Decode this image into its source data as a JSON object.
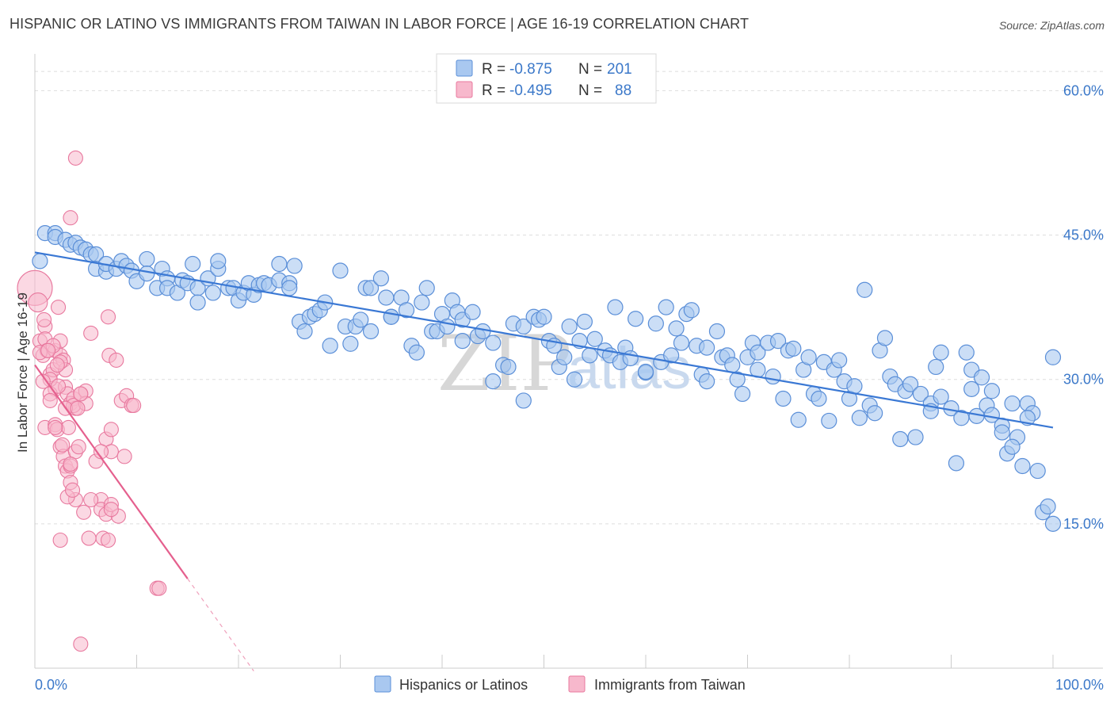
{
  "title": "HISPANIC OR LATINO VS IMMIGRANTS FROM TAIWAN IN LABOR FORCE | AGE 16-19 CORRELATION CHART",
  "source": "Source: ZipAtlas.com",
  "watermark": {
    "zip": "ZIP",
    "atlas": "atlas"
  },
  "legend": {
    "rows": [
      {
        "r_label": "R =",
        "r_value": "-0.875",
        "n_label": "N =",
        "n_value": "201"
      },
      {
        "r_label": "R =",
        "r_value": "-0.495",
        "n_label": "N =",
        "n_value": "88"
      }
    ]
  },
  "bottom_legend": [
    "Hispanics or Latinos",
    "Immigrants from Taiwan"
  ],
  "colors": {
    "blue_fill": "#a9c8f0",
    "blue_stroke": "#5b8fd8",
    "blue_line": "#3a78d4",
    "pink_fill": "#f7b8cc",
    "pink_stroke": "#e8789e",
    "pink_line": "#e5608e",
    "tick_text": "#3b78c9",
    "grid": "#dddddd"
  },
  "chart_data": {
    "type": "scatter",
    "title": "HISPANIC OR LATINO VS IMMIGRANTS FROM TAIWAN IN LABOR FORCE | AGE 16-19 CORRELATION CHART",
    "xlabel": "",
    "ylabel": "In Labor Force | Age 16-19",
    "xlim": [
      0,
      100
    ],
    "ylim": [
      0,
      63
    ],
    "x_tick_labels": [
      "0.0%",
      "100.0%"
    ],
    "y_ticks": [
      15,
      30,
      45,
      60
    ],
    "y_tick_labels": [
      "15.0%",
      "30.0%",
      "45.0%",
      "60.0%"
    ],
    "grid": true,
    "legend_position": "top-center",
    "series": [
      {
        "name": "Hispanics or Latinos",
        "r": -0.875,
        "n": 201,
        "trend": {
          "x": [
            0,
            100
          ],
          "y": [
            43.2,
            25.0
          ]
        },
        "points": [
          [
            0.5,
            42.3
          ],
          [
            1,
            45.2
          ],
          [
            2,
            45.2
          ],
          [
            2,
            44.8
          ],
          [
            3,
            44.5
          ],
          [
            3.5,
            44
          ],
          [
            4,
            44.2
          ],
          [
            4.5,
            43.7
          ],
          [
            5,
            43.5
          ],
          [
            5.5,
            43
          ],
          [
            6,
            43
          ],
          [
            6,
            41.5
          ],
          [
            7,
            41.2
          ],
          [
            7,
            42
          ],
          [
            8,
            41.5
          ],
          [
            8.5,
            42.3
          ],
          [
            9,
            41.8
          ],
          [
            9.5,
            41.3
          ],
          [
            10,
            40.2
          ],
          [
            11,
            42.5
          ],
          [
            11,
            41
          ],
          [
            12,
            39.5
          ],
          [
            12.5,
            41.5
          ],
          [
            13,
            40.5
          ],
          [
            13,
            39.5
          ],
          [
            14,
            39
          ],
          [
            14.5,
            40.3
          ],
          [
            15,
            40
          ],
          [
            15.5,
            42
          ],
          [
            16,
            39.5
          ],
          [
            16,
            38
          ],
          [
            17,
            40.5
          ],
          [
            17.5,
            39
          ],
          [
            18,
            41.5
          ],
          [
            18,
            42.3
          ],
          [
            19,
            39.5
          ],
          [
            19.5,
            39.5
          ],
          [
            20,
            38.2
          ],
          [
            20.5,
            39
          ],
          [
            21,
            40
          ],
          [
            21.5,
            38.8
          ],
          [
            22,
            39.8
          ],
          [
            22.5,
            40
          ],
          [
            23,
            39.8
          ],
          [
            24,
            42
          ],
          [
            24,
            40.3
          ],
          [
            25,
            40
          ],
          [
            25,
            39.5
          ],
          [
            25.5,
            41.8
          ],
          [
            26,
            36
          ],
          [
            26.5,
            35
          ],
          [
            27,
            36.5
          ],
          [
            27.5,
            36.8
          ],
          [
            28,
            37.2
          ],
          [
            28.5,
            38
          ],
          [
            29,
            33.5
          ],
          [
            30,
            41.3
          ],
          [
            30.5,
            35.5
          ],
          [
            31,
            33.7
          ],
          [
            31.5,
            35.5
          ],
          [
            32,
            36.2
          ],
          [
            32.5,
            39.5
          ],
          [
            33,
            39.5
          ],
          [
            33,
            35
          ],
          [
            34,
            40.5
          ],
          [
            34.5,
            38.5
          ],
          [
            35,
            36.5
          ],
          [
            35,
            36.5
          ],
          [
            36,
            38.5
          ],
          [
            36.5,
            37.2
          ],
          [
            37,
            33.5
          ],
          [
            37.5,
            32.8
          ],
          [
            38,
            38
          ],
          [
            38.5,
            39.5
          ],
          [
            39,
            35
          ],
          [
            39.5,
            35
          ],
          [
            40,
            36.8
          ],
          [
            40.5,
            35.5
          ],
          [
            41,
            38.2
          ],
          [
            41.5,
            37
          ],
          [
            42,
            36.2
          ],
          [
            42,
            34
          ],
          [
            43,
            37
          ],
          [
            43.5,
            34.5
          ],
          [
            44,
            35
          ],
          [
            45,
            33.8
          ],
          [
            45,
            29.8
          ],
          [
            46,
            31.5
          ],
          [
            46.5,
            31.3
          ],
          [
            47,
            35.8
          ],
          [
            48,
            35.5
          ],
          [
            48,
            27.8
          ],
          [
            49,
            36.5
          ],
          [
            49.5,
            36.2
          ],
          [
            50,
            36.5
          ],
          [
            50.5,
            34
          ],
          [
            51,
            33.5
          ],
          [
            51.5,
            31.3
          ],
          [
            52,
            32.3
          ],
          [
            52.5,
            35.5
          ],
          [
            53,
            30
          ],
          [
            53.5,
            34
          ],
          [
            54,
            36
          ],
          [
            54.5,
            32.5
          ],
          [
            55,
            34.2
          ],
          [
            56,
            33
          ],
          [
            56.5,
            32.5
          ],
          [
            57,
            37.5
          ],
          [
            57.5,
            31.8
          ],
          [
            58,
            33.3
          ],
          [
            58.5,
            32.2
          ],
          [
            59,
            36.3
          ],
          [
            60,
            30.7
          ],
          [
            60,
            30.8
          ],
          [
            61,
            35.8
          ],
          [
            61.5,
            31.8
          ],
          [
            62,
            37.5
          ],
          [
            62.5,
            32.5
          ],
          [
            63,
            35.3
          ],
          [
            63.5,
            33.8
          ],
          [
            64,
            36.8
          ],
          [
            64.5,
            37.2
          ],
          [
            65,
            33.5
          ],
          [
            65.5,
            30.5
          ],
          [
            66,
            29.8
          ],
          [
            66,
            33.3
          ],
          [
            67,
            35
          ],
          [
            67.5,
            32.3
          ],
          [
            68,
            32.5
          ],
          [
            68.5,
            31.5
          ],
          [
            69,
            30
          ],
          [
            69.5,
            28.5
          ],
          [
            70,
            32.3
          ],
          [
            70.5,
            33.8
          ],
          [
            71,
            31
          ],
          [
            71,
            32.8
          ],
          [
            72,
            33.8
          ],
          [
            72.5,
            30.3
          ],
          [
            73,
            34
          ],
          [
            73.5,
            28
          ],
          [
            74,
            33
          ],
          [
            74.5,
            33.2
          ],
          [
            75,
            25.8
          ],
          [
            75.5,
            31
          ],
          [
            76,
            32.3
          ],
          [
            76.5,
            28.5
          ],
          [
            77,
            28
          ],
          [
            77.5,
            31.8
          ],
          [
            78,
            25.7
          ],
          [
            78.5,
            31
          ],
          [
            79,
            32
          ],
          [
            79.5,
            29.8
          ],
          [
            80,
            28
          ],
          [
            80.5,
            29.3
          ],
          [
            81,
            26
          ],
          [
            81.5,
            39.3
          ],
          [
            82,
            27.3
          ],
          [
            82.5,
            26.5
          ],
          [
            83,
            33
          ],
          [
            83.5,
            34.3
          ],
          [
            84,
            30.3
          ],
          [
            84.5,
            29.5
          ],
          [
            85,
            23.8
          ],
          [
            85.5,
            28.8
          ],
          [
            86,
            29.5
          ],
          [
            86.5,
            24
          ],
          [
            87,
            28.5
          ],
          [
            88,
            27.5
          ],
          [
            88.5,
            31.3
          ],
          [
            89,
            32.8
          ],
          [
            89,
            28.2
          ],
          [
            90,
            27
          ],
          [
            90.5,
            21.3
          ],
          [
            91,
            26
          ],
          [
            91.5,
            32.8
          ],
          [
            92,
            31
          ],
          [
            92.5,
            26.2
          ],
          [
            93,
            30.2
          ],
          [
            93.5,
            27.3
          ],
          [
            94,
            28.8
          ],
          [
            94,
            26.3
          ],
          [
            95,
            25.2
          ],
          [
            95.5,
            22.3
          ],
          [
            96,
            27.5
          ],
          [
            96.5,
            24
          ],
          [
            97,
            21
          ],
          [
            97.5,
            27.5
          ],
          [
            98,
            26.5
          ],
          [
            98.5,
            20.5
          ],
          [
            99,
            16.2
          ],
          [
            99.5,
            16.8
          ],
          [
            100,
            15
          ],
          [
            100,
            32.3
          ],
          [
            96,
            23
          ],
          [
            92,
            29
          ],
          [
            88,
            26.7
          ],
          [
            95,
            24.5
          ],
          [
            97.5,
            26
          ]
        ]
      },
      {
        "name": "Immigrants from Taiwan",
        "r": -0.495,
        "n": 88,
        "trend": {
          "x": [
            0,
            15
          ],
          "y": [
            31.5,
            9.3
          ]
        },
        "trend_dashed": {
          "x": [
            15,
            21.5
          ],
          "y": [
            9.3,
            -0.3
          ]
        },
        "points": [
          [
            0,
            39.5
          ],
          [
            0.3,
            38
          ],
          [
            0.5,
            34
          ],
          [
            0.8,
            32.5
          ],
          [
            1,
            35.5
          ],
          [
            1,
            34.2
          ],
          [
            1.2,
            33
          ],
          [
            1.5,
            30.5
          ],
          [
            1.8,
            31
          ],
          [
            2,
            29
          ],
          [
            2,
            33
          ],
          [
            2.3,
            37.5
          ],
          [
            2.5,
            34
          ],
          [
            2.5,
            32.5
          ],
          [
            2.8,
            32
          ],
          [
            3,
            29.2
          ],
          [
            3.2,
            28.5
          ],
          [
            3.5,
            27.5
          ],
          [
            3.8,
            28
          ],
          [
            4,
            27
          ],
          [
            1,
            25
          ],
          [
            1.5,
            28.5
          ],
          [
            2,
            25.3
          ],
          [
            2.2,
            24.8
          ],
          [
            2.5,
            23
          ],
          [
            2.8,
            22
          ],
          [
            3,
            21
          ],
          [
            3.2,
            20.5
          ],
          [
            3.5,
            19.3
          ],
          [
            2.7,
            23.2
          ],
          [
            3.5,
            21
          ],
          [
            4,
            22.5
          ],
          [
            4.3,
            23
          ],
          [
            3.8,
            27.3
          ],
          [
            4.5,
            28.5
          ],
          [
            5,
            28.8
          ],
          [
            5,
            27.5
          ],
          [
            5.5,
            34.8
          ],
          [
            6,
            21.5
          ],
          [
            6.5,
            17.5
          ],
          [
            6.5,
            16.5
          ],
          [
            7,
            16
          ],
          [
            7.5,
            17
          ],
          [
            7,
            23.8
          ],
          [
            7.5,
            24.8
          ],
          [
            7.5,
            22.5
          ],
          [
            6.5,
            22.5
          ],
          [
            7.3,
            32.5
          ],
          [
            7.2,
            36.5
          ],
          [
            8,
            32
          ],
          [
            8.2,
            15.8
          ],
          [
            8.5,
            27.8
          ],
          [
            8.8,
            22
          ],
          [
            9,
            28.3
          ],
          [
            9.5,
            27.3
          ],
          [
            9.7,
            27.3
          ],
          [
            4,
            53
          ],
          [
            3.5,
            46.8
          ],
          [
            3,
            31
          ],
          [
            3.3,
            25
          ],
          [
            4.8,
            16.2
          ],
          [
            5.3,
            13.5
          ],
          [
            6.7,
            13.5
          ],
          [
            7.2,
            13.3
          ],
          [
            2.5,
            13.3
          ],
          [
            4,
            17.5
          ],
          [
            3.2,
            17.8
          ],
          [
            3.5,
            21.2
          ],
          [
            4.5,
            28.5
          ],
          [
            5.5,
            17.5
          ],
          [
            12,
            8.3
          ],
          [
            12.2,
            8.3
          ],
          [
            4.5,
            2.5
          ],
          [
            1.5,
            30
          ],
          [
            2.3,
            29.3
          ],
          [
            1.8,
            33.5
          ],
          [
            2.5,
            31.8
          ],
          [
            2.2,
            31.5
          ],
          [
            3,
            27
          ],
          [
            4.2,
            27
          ],
          [
            0.5,
            32.8
          ],
          [
            0.8,
            29.8
          ],
          [
            1.5,
            27.8
          ],
          [
            0.9,
            36.2
          ],
          [
            3.7,
            18.5
          ],
          [
            2,
            25
          ],
          [
            7.5,
            16.5
          ],
          [
            1.3,
            33
          ]
        ]
      }
    ]
  }
}
